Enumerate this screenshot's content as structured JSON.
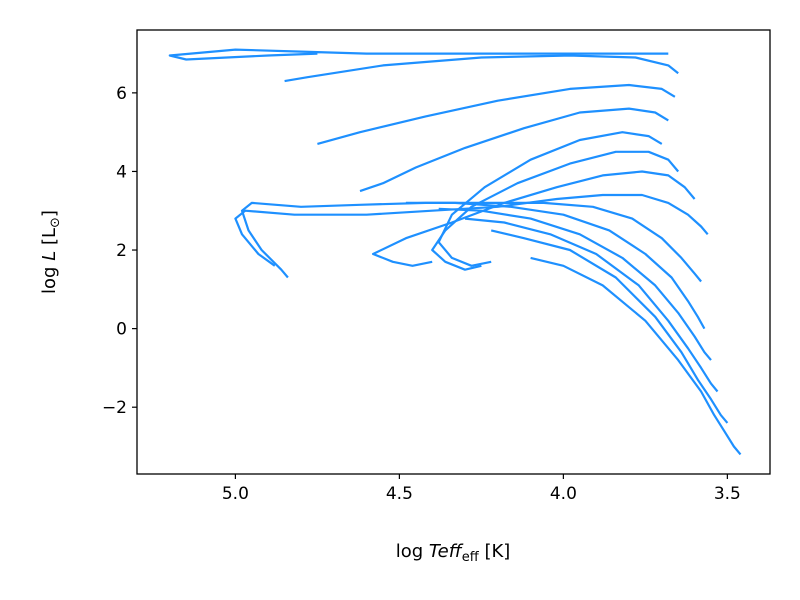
{
  "chart_data": {
    "type": "line",
    "title": "",
    "xlabel": {
      "prefix": "log",
      "var": "Teff",
      "sub": "eff",
      "unit": "[K]"
    },
    "ylabel": {
      "prefix": "log",
      "var": "L",
      "unit_open": "[L",
      "unit_sub": "⊙",
      "unit_close": "]"
    },
    "x_inverted": true,
    "xlim": [
      5.3,
      3.37
    ],
    "ylim": [
      -3.7,
      7.6
    ],
    "x_ticks": [
      5.0,
      4.5,
      4.0,
      3.5
    ],
    "x_tick_labels": [
      "5.0",
      "4.5",
      "4.0",
      "3.5"
    ],
    "y_ticks": [
      -2,
      0,
      2,
      4,
      6
    ],
    "y_tick_labels": [
      "−2",
      "0",
      "2",
      "4",
      "6"
    ],
    "grid": false,
    "legend": "none",
    "color": "#1e90ff",
    "series": [
      {
        "x": [
          3.46,
          3.48,
          3.51,
          3.54,
          3.58,
          3.65,
          3.75,
          3.88,
          4.0,
          4.1
        ],
        "y": [
          -3.2,
          -3.0,
          -2.6,
          -2.2,
          -1.6,
          -0.8,
          0.2,
          1.1,
          1.6,
          1.8
        ]
      },
      {
        "x": [
          3.5,
          3.52,
          3.55,
          3.59,
          3.64,
          3.72,
          3.84,
          3.98,
          4.12,
          4.22
        ],
        "y": [
          -2.4,
          -2.2,
          -1.8,
          -1.3,
          -0.6,
          0.3,
          1.3,
          2.0,
          2.3,
          2.5
        ]
      },
      {
        "x": [
          3.53,
          3.55,
          3.58,
          3.62,
          3.68,
          3.77,
          3.9,
          4.04,
          4.18,
          4.3
        ],
        "y": [
          -1.6,
          -1.4,
          -1.0,
          -0.5,
          0.2,
          1.1,
          1.9,
          2.4,
          2.7,
          2.8
        ]
      },
      {
        "x": [
          3.55,
          3.57,
          3.6,
          3.65,
          3.72,
          3.82,
          3.95,
          4.1,
          4.25,
          4.38
        ],
        "y": [
          -0.8,
          -0.6,
          -0.2,
          0.4,
          1.1,
          1.8,
          2.4,
          2.8,
          3.0,
          3.05
        ]
      },
      {
        "x": [
          3.57,
          3.59,
          3.62,
          3.67,
          3.75,
          3.86,
          4.0,
          4.16,
          4.33,
          4.48
        ],
        "y": [
          0.0,
          0.3,
          0.7,
          1.3,
          1.9,
          2.5,
          2.9,
          3.1,
          3.2,
          3.2
        ]
      },
      {
        "x": [
          3.58,
          3.6,
          3.64,
          3.7,
          3.79,
          3.91,
          4.06,
          4.23,
          4.42,
          4.62,
          4.8,
          4.95,
          4.98,
          4.96,
          4.92,
          4.86,
          4.84
        ],
        "y": [
          1.2,
          1.4,
          1.8,
          2.3,
          2.8,
          3.1,
          3.2,
          3.2,
          3.2,
          3.15,
          3.1,
          3.2,
          3.0,
          2.5,
          2.0,
          1.5,
          1.3
        ]
      },
      {
        "x": [
          3.56,
          3.58,
          3.62,
          3.68,
          3.76,
          3.88,
          4.02,
          4.2,
          4.4,
          4.6,
          4.82,
          4.97,
          5.0,
          4.98,
          4.93,
          4.88
        ],
        "y": [
          2.4,
          2.6,
          2.9,
          3.2,
          3.4,
          3.4,
          3.3,
          3.1,
          3.0,
          2.9,
          2.9,
          3.0,
          2.8,
          2.4,
          1.9,
          1.6
        ]
      },
      {
        "x": [
          3.6,
          3.63,
          3.68,
          3.76,
          3.88,
          4.02,
          4.18,
          4.34,
          4.48,
          4.58,
          4.52,
          4.46,
          4.4
        ],
        "y": [
          3.3,
          3.6,
          3.9,
          4.0,
          3.9,
          3.6,
          3.2,
          2.7,
          2.3,
          1.9,
          1.7,
          1.6,
          1.7
        ]
      },
      {
        "x": [
          3.65,
          3.68,
          3.74,
          3.84,
          3.98,
          4.14,
          4.28,
          4.36,
          4.4,
          4.36,
          4.3,
          4.25
        ],
        "y": [
          4.0,
          4.3,
          4.5,
          4.5,
          4.2,
          3.7,
          3.1,
          2.5,
          2.0,
          1.7,
          1.5,
          1.6
        ]
      },
      {
        "x": [
          3.7,
          3.74,
          3.82,
          3.95,
          4.1,
          4.24,
          4.34,
          4.38,
          4.34,
          4.28,
          4.22
        ],
        "y": [
          4.7,
          4.9,
          5.0,
          4.8,
          4.3,
          3.6,
          2.9,
          2.2,
          1.8,
          1.6,
          1.7
        ]
      },
      {
        "x": [
          3.68,
          3.72,
          3.8,
          3.95,
          4.12,
          4.3,
          4.45,
          4.55,
          4.62
        ],
        "y": [
          5.3,
          5.5,
          5.6,
          5.5,
          5.1,
          4.6,
          4.1,
          3.7,
          3.5
        ]
      },
      {
        "x": [
          3.66,
          3.7,
          3.8,
          3.98,
          4.2,
          4.42,
          4.62,
          4.75
        ],
        "y": [
          5.9,
          6.1,
          6.2,
          6.1,
          5.8,
          5.4,
          5.0,
          4.7
        ]
      },
      {
        "x": [
          3.65,
          3.68,
          3.78,
          3.98,
          4.25,
          4.55,
          4.78,
          4.85
        ],
        "y": [
          6.5,
          6.7,
          6.9,
          6.95,
          6.9,
          6.7,
          6.4,
          6.3
        ]
      },
      {
        "x": [
          3.68,
          3.8,
          4.0,
          4.3,
          4.6,
          4.8,
          5.0,
          5.2,
          5.15,
          4.9,
          4.75
        ],
        "y": [
          7.0,
          7.0,
          7.0,
          7.0,
          7.0,
          7.05,
          7.1,
          6.95,
          6.85,
          6.95,
          7.0
        ]
      }
    ]
  }
}
